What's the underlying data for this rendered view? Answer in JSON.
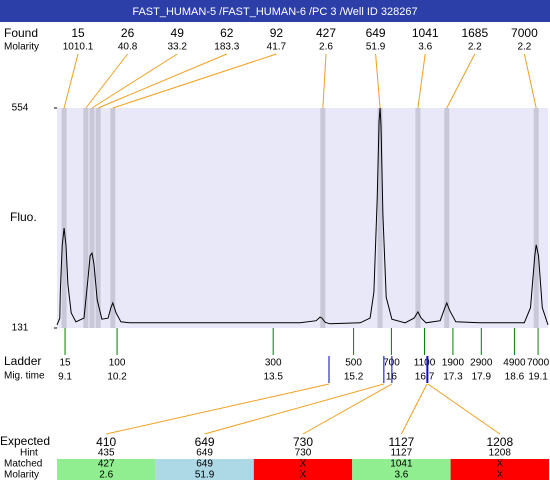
{
  "header": {
    "title": "FAST_HUMAN-5 /FAST_HUMAN-6 /PC 3 /Well ID 328267"
  },
  "found": {
    "label": "Found",
    "molarity_label": "Molarity",
    "color": "#f0a020",
    "band_color": "#c8c8d8",
    "peaks": [
      {
        "size": 15,
        "molarity": 1010.1,
        "time": 9.08
      },
      {
        "size": 26,
        "molarity": 40.8,
        "time": 9.54
      },
      {
        "size": 49,
        "molarity": 33.2,
        "time": 9.67
      },
      {
        "size": 62,
        "molarity": 183.3,
        "time": 9.8
      },
      {
        "size": 92,
        "molarity": 41.7,
        "time": 10.11
      },
      {
        "size": 427,
        "molarity": 2.6,
        "time": 14.55
      },
      {
        "size": 649,
        "molarity": 51.9,
        "time": 15.76
      },
      {
        "size": 1041,
        "molarity": 3.6,
        "time": 16.56
      },
      {
        "size": 1685,
        "molarity": 2.2,
        "time": 17.17
      },
      {
        "size": 7000,
        "molarity": 2.2,
        "time": 19.06
      }
    ]
  },
  "plot": {
    "type": "line",
    "y_label": "Fluo.",
    "ylim": [
      131,
      554
    ],
    "yticks": [
      554,
      131
    ],
    "xlim": [
      8.93,
      19.31
    ],
    "color": "#000000",
    "background": "#e8e8f8",
    "trace": {
      "x": [
        8.93,
        8.99,
        9.0,
        9.04,
        9.08,
        9.12,
        9.16,
        9.23,
        9.33,
        9.5,
        9.59,
        9.63,
        9.67,
        9.71,
        9.78,
        9.88,
        10.01,
        10.07,
        10.11,
        10.18,
        10.28,
        10.47,
        11.95,
        14.07,
        14.41,
        14.49,
        14.53,
        14.6,
        14.7,
        15.34,
        15.55,
        15.63,
        15.7,
        15.74,
        15.76,
        15.78,
        15.82,
        15.89,
        16.01,
        16.29,
        16.48,
        16.56,
        16.63,
        16.73,
        17.03,
        17.13,
        17.17,
        17.23,
        17.36,
        17.86,
        18.81,
        18.94,
        19.03,
        19.06,
        19.11,
        19.19,
        19.31
      ],
      "values": [
        137,
        150,
        200,
        290,
        323,
        290,
        215,
        160,
        143,
        150,
        230,
        270,
        275,
        255,
        185,
        148,
        150,
        170,
        179,
        160,
        143,
        141,
        141,
        141,
        145,
        152,
        150,
        142,
        139,
        141,
        150,
        200,
        380,
        530,
        554,
        520,
        350,
        190,
        148,
        141,
        150,
        162,
        150,
        141,
        145,
        170,
        179,
        165,
        143,
        141,
        141,
        170,
        270,
        291,
        270,
        170,
        137
      ]
    }
  },
  "ladder": {
    "label": "Ladder",
    "time_label": "Mig. time",
    "color": "#008000",
    "sizes": [
      15,
      100,
      300,
      500,
      700,
      1100,
      1900,
      2900,
      4900,
      7000
    ],
    "times": [
      9.1,
      10.2,
      13.5,
      15.2,
      16,
      16.7,
      17.3,
      17.9,
      18.6,
      19.1
    ]
  },
  "expected": {
    "labels": [
      "Expected",
      "Hint",
      "Matched",
      "Molarity"
    ],
    "line_color": "#f0a020",
    "marker_color": "#0000c0",
    "items": [
      {
        "expected": 410,
        "hint": 435,
        "matched": 427,
        "molarity": 2.6,
        "time": 14.68,
        "color": "#90ee90"
      },
      {
        "expected": 649,
        "hint": 649,
        "matched": 649,
        "molarity": 51.9,
        "time": 15.84,
        "color": "#add8e6"
      },
      {
        "expected": 730,
        "hint": 730,
        "matched": "X",
        "molarity": "X",
        "time": 16.01,
        "color": "#ff0000"
      },
      {
        "expected": 1127,
        "hint": 1127,
        "matched": 1041,
        "molarity": 3.6,
        "time": 16.75,
        "color": "#90ee90"
      },
      {
        "expected": 1208,
        "hint": 1208,
        "matched": "X",
        "molarity": "X",
        "time": 16.77,
        "color": "#ff0000"
      }
    ]
  }
}
